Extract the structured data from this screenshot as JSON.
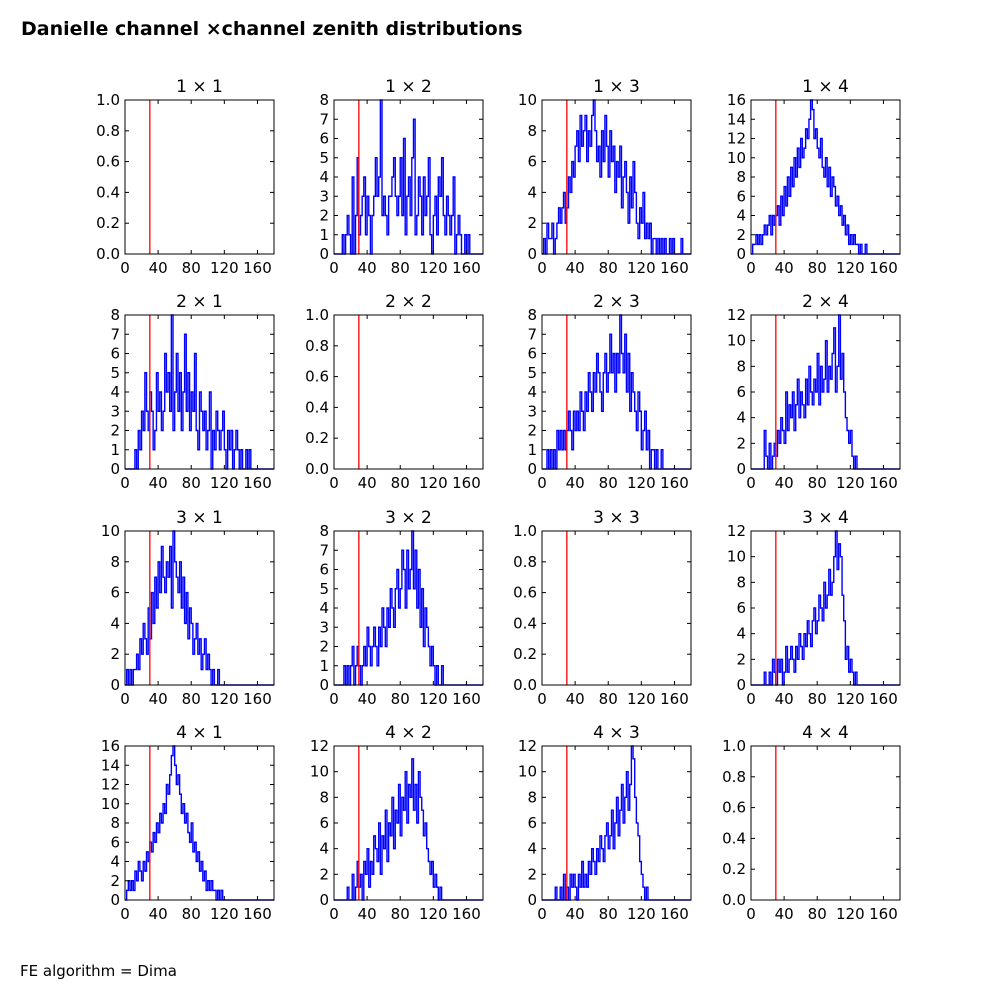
{
  "figure": {
    "title": "Danielle channel ×channel zenith distributions",
    "footer": "FE algorithm = Dima"
  },
  "colors": {
    "histogram": "#0000ff",
    "cut_line": "#ff0000",
    "axes": "#000000"
  },
  "chart_data": [
    {
      "type": "line",
      "title": "1 × 1",
      "empty": true,
      "cut_line_x": 30,
      "xlim": [
        0,
        180
      ],
      "ylim": [
        0,
        1.0
      ],
      "x_ticks": [
        "0",
        "40",
        "80",
        "120",
        "160"
      ],
      "y_ticks": [
        "0.0",
        "0.2",
        "0.4",
        "0.6",
        "0.8",
        "1.0"
      ],
      "bin_width": 2,
      "values": []
    },
    {
      "type": "line",
      "title": "1 × 2",
      "empty": false,
      "cut_line_x": 30,
      "xlim": [
        0,
        180
      ],
      "ylim": [
        0,
        8
      ],
      "x_ticks": [
        "0",
        "40",
        "80",
        "120",
        "160"
      ],
      "y_ticks": [
        "0",
        "1",
        "2",
        "3",
        "4",
        "5",
        "6",
        "7",
        "8"
      ],
      "bin_width": 2,
      "values": [
        0,
        0,
        0,
        0,
        0,
        1,
        0,
        1,
        2,
        1,
        0,
        4,
        0,
        2,
        5,
        1,
        2,
        3,
        4,
        1,
        3,
        2,
        0,
        2,
        3,
        5,
        3,
        4,
        8,
        2,
        3,
        2,
        1,
        3,
        3,
        4,
        5,
        3,
        2,
        3,
        5,
        2,
        6,
        1,
        3,
        4,
        2,
        5,
        7,
        1,
        2,
        4,
        3,
        1,
        4,
        2,
        3,
        5,
        1,
        0,
        2,
        3,
        1,
        4,
        3,
        5,
        2,
        1,
        3,
        2,
        1,
        2,
        4,
        0,
        1,
        2,
        1,
        0,
        0,
        1,
        0,
        1,
        0,
        0,
        0,
        0,
        0,
        0,
        0,
        0
      ]
    },
    {
      "type": "line",
      "title": "1 × 3",
      "empty": false,
      "cut_line_x": 30,
      "xlim": [
        0,
        180
      ],
      "ylim": [
        0,
        10
      ],
      "x_ticks": [
        "0",
        "40",
        "80",
        "120",
        "160"
      ],
      "y_ticks": [
        "0",
        "2",
        "4",
        "6",
        "8",
        "10"
      ],
      "bin_width": 2,
      "values": [
        0,
        1,
        0,
        2,
        1,
        1,
        2,
        0,
        1,
        2,
        3,
        2,
        3,
        4,
        2,
        3,
        5,
        4,
        6,
        5,
        7,
        8,
        6,
        9,
        7,
        8,
        9,
        6,
        8,
        7,
        9,
        10,
        8,
        6,
        7,
        5,
        8,
        6,
        9,
        7,
        5,
        8,
        6,
        7,
        4,
        6,
        5,
        7,
        3,
        5,
        6,
        4,
        2,
        5,
        3,
        6,
        4,
        2,
        1,
        3,
        2,
        4,
        1,
        2,
        1,
        2,
        0,
        1,
        1,
        0,
        1,
        0,
        1,
        0,
        1,
        0,
        0,
        1,
        0,
        1,
        0,
        0,
        0,
        0,
        1,
        0,
        0,
        0,
        0,
        0
      ]
    },
    {
      "type": "line",
      "title": "1 × 4",
      "empty": false,
      "cut_line_x": 30,
      "xlim": [
        0,
        180
      ],
      "ylim": [
        0,
        16
      ],
      "x_ticks": [
        "0",
        "40",
        "80",
        "120",
        "160"
      ],
      "y_ticks": [
        "0",
        "2",
        "4",
        "6",
        "8",
        "10",
        "12",
        "14",
        "16"
      ],
      "bin_width": 2,
      "values": [
        0,
        1,
        1,
        2,
        1,
        2,
        1,
        2,
        3,
        2,
        3,
        4,
        2,
        4,
        3,
        4,
        5,
        3,
        6,
        4,
        7,
        5,
        8,
        6,
        9,
        7,
        10,
        8,
        11,
        9,
        12,
        10,
        11,
        13,
        12,
        14,
        16,
        15,
        12,
        13,
        11,
        10,
        12,
        9,
        8,
        10,
        7,
        9,
        6,
        8,
        7,
        5,
        6,
        4,
        5,
        3,
        4,
        2,
        3,
        1,
        2,
        1,
        2,
        1,
        1,
        0,
        1,
        0,
        0,
        1,
        0,
        0,
        0,
        0,
        0,
        0,
        0,
        0,
        0,
        0,
        0,
        0,
        0,
        0,
        0,
        0,
        0,
        0,
        0,
        0
      ]
    },
    {
      "type": "line",
      "title": "2 × 1",
      "empty": false,
      "cut_line_x": 30,
      "xlim": [
        0,
        180
      ],
      "ylim": [
        0,
        8
      ],
      "x_ticks": [
        "0",
        "40",
        "80",
        "120",
        "160"
      ],
      "y_ticks": [
        "0",
        "1",
        "2",
        "3",
        "4",
        "5",
        "6",
        "7",
        "8"
      ],
      "bin_width": 2,
      "values": [
        0,
        0,
        0,
        0,
        0,
        0,
        1,
        0,
        2,
        1,
        3,
        2,
        5,
        3,
        2,
        4,
        3,
        1,
        2,
        5,
        3,
        4,
        2,
        3,
        6,
        4,
        5,
        3,
        8,
        2,
        4,
        6,
        3,
        5,
        2,
        4,
        7,
        3,
        5,
        2,
        4,
        3,
        6,
        2,
        1,
        4,
        3,
        2,
        3,
        1,
        2,
        4,
        0,
        2,
        1,
        3,
        2,
        1,
        2,
        3,
        1,
        0,
        2,
        1,
        2,
        0,
        1,
        2,
        1,
        0,
        1,
        0,
        0,
        1,
        0,
        1,
        0,
        0,
        0,
        0,
        0,
        0,
        0,
        0,
        0,
        0,
        0,
        0,
        0,
        0
      ]
    },
    {
      "type": "line",
      "title": "2 × 2",
      "empty": true,
      "cut_line_x": 30,
      "xlim": [
        0,
        180
      ],
      "ylim": [
        0,
        1.0
      ],
      "x_ticks": [
        "0",
        "40",
        "80",
        "120",
        "160"
      ],
      "y_ticks": [
        "0.0",
        "0.2",
        "0.4",
        "0.6",
        "0.8",
        "1.0"
      ],
      "bin_width": 2,
      "values": []
    },
    {
      "type": "line",
      "title": "2 × 3",
      "empty": false,
      "cut_line_x": 30,
      "xlim": [
        0,
        180
      ],
      "ylim": [
        0,
        8
      ],
      "x_ticks": [
        "0",
        "40",
        "80",
        "120",
        "160"
      ],
      "y_ticks": [
        "0",
        "1",
        "2",
        "3",
        "4",
        "5",
        "6",
        "7",
        "8"
      ],
      "bin_width": 2,
      "values": [
        0,
        0,
        0,
        1,
        0,
        1,
        0,
        1,
        0,
        2,
        1,
        2,
        1,
        2,
        1,
        2,
        3,
        2,
        1,
        3,
        2,
        3,
        2,
        4,
        3,
        2,
        4,
        3,
        5,
        4,
        3,
        5,
        4,
        6,
        5,
        4,
        3,
        5,
        6,
        4,
        5,
        7,
        5,
        6,
        4,
        6,
        5,
        8,
        6,
        5,
        7,
        4,
        6,
        3,
        5,
        4,
        3,
        2,
        4,
        3,
        1,
        2,
        3,
        1,
        2,
        0,
        1,
        1,
        0,
        1,
        0,
        0,
        1,
        0,
        0,
        0,
        0,
        0,
        0,
        0,
        0,
        0,
        0,
        0,
        0,
        0,
        0,
        0,
        0,
        0
      ]
    },
    {
      "type": "line",
      "title": "2 × 4",
      "empty": false,
      "cut_line_x": 30,
      "xlim": [
        0,
        180
      ],
      "ylim": [
        0,
        12
      ],
      "x_ticks": [
        "0",
        "40",
        "80",
        "120",
        "160"
      ],
      "y_ticks": [
        "0",
        "2",
        "4",
        "6",
        "8",
        "10",
        "12"
      ],
      "bin_width": 2,
      "values": [
        0,
        0,
        0,
        0,
        0,
        0,
        0,
        0,
        3,
        1,
        0,
        2,
        0,
        1,
        2,
        1,
        3,
        2,
        4,
        3,
        2,
        6,
        3,
        5,
        4,
        6,
        3,
        5,
        7,
        4,
        6,
        5,
        4,
        7,
        5,
        8,
        6,
        5,
        7,
        6,
        9,
        5,
        8,
        6,
        7,
        10,
        6,
        8,
        7,
        9,
        11,
        6,
        8,
        12,
        7,
        9,
        6,
        4,
        3,
        2,
        3,
        1,
        0,
        1,
        0,
        0,
        0,
        0,
        0,
        0,
        0,
        0,
        0,
        0,
        0,
        0,
        0,
        0,
        0,
        0,
        0,
        0,
        0,
        0,
        0,
        0,
        0,
        0,
        0,
        0
      ]
    },
    {
      "type": "line",
      "title": "3 × 1",
      "empty": false,
      "cut_line_x": 30,
      "xlim": [
        0,
        180
      ],
      "ylim": [
        0,
        10
      ],
      "x_ticks": [
        "0",
        "40",
        "80",
        "120",
        "160"
      ],
      "y_ticks": [
        "0",
        "2",
        "4",
        "6",
        "8",
        "10"
      ],
      "bin_width": 2,
      "values": [
        0,
        1,
        0,
        1,
        0,
        1,
        1,
        2,
        1,
        3,
        2,
        4,
        3,
        2,
        5,
        3,
        6,
        4,
        7,
        5,
        8,
        6,
        9,
        7,
        6,
        8,
        7,
        9,
        5,
        10,
        8,
        7,
        6,
        8,
        5,
        7,
        4,
        6,
        3,
        5,
        4,
        2,
        3,
        4,
        2,
        3,
        1,
        2,
        3,
        1,
        2,
        1,
        0,
        1,
        0,
        0,
        1,
        0,
        0,
        0,
        0,
        0,
        0,
        0,
        0,
        0,
        0,
        0,
        0,
        0,
        0,
        0,
        0,
        0,
        0,
        0,
        0,
        0,
        0,
        0,
        0,
        0,
        0,
        0,
        0,
        0,
        0,
        0,
        0,
        0
      ]
    },
    {
      "type": "line",
      "title": "3 × 2",
      "empty": false,
      "cut_line_x": 30,
      "xlim": [
        0,
        180
      ],
      "ylim": [
        0,
        8
      ],
      "x_ticks": [
        "0",
        "40",
        "80",
        "120",
        "160"
      ],
      "y_ticks": [
        "0",
        "1",
        "2",
        "3",
        "4",
        "5",
        "6",
        "7",
        "8"
      ],
      "bin_width": 2,
      "values": [
        0,
        0,
        0,
        0,
        0,
        0,
        1,
        0,
        1,
        0,
        1,
        2,
        0,
        1,
        2,
        1,
        0,
        1,
        2,
        1,
        3,
        2,
        1,
        2,
        3,
        2,
        1,
        3,
        2,
        4,
        3,
        2,
        4,
        3,
        5,
        4,
        3,
        5,
        6,
        4,
        5,
        7,
        6,
        4,
        7,
        5,
        6,
        8,
        5,
        7,
        4,
        6,
        3,
        5,
        2,
        4,
        3,
        2,
        1,
        2,
        1,
        0,
        1,
        0,
        0,
        1,
        0,
        0,
        0,
        0,
        0,
        0,
        0,
        0,
        0,
        0,
        0,
        0,
        0,
        0,
        0,
        0,
        0,
        0,
        0,
        0,
        0,
        0,
        0,
        0
      ]
    },
    {
      "type": "line",
      "title": "3 × 3",
      "empty": true,
      "cut_line_x": 30,
      "xlim": [
        0,
        180
      ],
      "ylim": [
        0,
        1.0
      ],
      "x_ticks": [
        "0",
        "40",
        "80",
        "120",
        "160"
      ],
      "y_ticks": [
        "0.0",
        "0.2",
        "0.4",
        "0.6",
        "0.8",
        "1.0"
      ],
      "bin_width": 2,
      "values": []
    },
    {
      "type": "line",
      "title": "3 × 4",
      "empty": false,
      "cut_line_x": 30,
      "xlim": [
        0,
        180
      ],
      "ylim": [
        0,
        12
      ],
      "x_ticks": [
        "0",
        "40",
        "80",
        "120",
        "160"
      ],
      "y_ticks": [
        "0",
        "2",
        "4",
        "6",
        "8",
        "10",
        "12"
      ],
      "bin_width": 2,
      "values": [
        0,
        0,
        0,
        0,
        0,
        0,
        0,
        0,
        1,
        0,
        0,
        1,
        0,
        2,
        1,
        0,
        2,
        1,
        2,
        0,
        1,
        3,
        1,
        2,
        3,
        2,
        1,
        3,
        2,
        4,
        3,
        2,
        4,
        3,
        5,
        4,
        3,
        5,
        6,
        4,
        5,
        7,
        6,
        5,
        8,
        6,
        7,
        9,
        7,
        8,
        10,
        12,
        9,
        11,
        10,
        7,
        5,
        2,
        3,
        1,
        2,
        1,
        0,
        1,
        0,
        0,
        0,
        0,
        0,
        0,
        0,
        0,
        0,
        0,
        0,
        0,
        0,
        0,
        0,
        0,
        0,
        0,
        0,
        0,
        0,
        0,
        0,
        0,
        0,
        0
      ]
    },
    {
      "type": "line",
      "title": "4 × 1",
      "empty": false,
      "cut_line_x": 30,
      "xlim": [
        0,
        180
      ],
      "ylim": [
        0,
        16
      ],
      "x_ticks": [
        "0",
        "40",
        "80",
        "120",
        "160"
      ],
      "y_ticks": [
        "0",
        "2",
        "4",
        "6",
        "8",
        "10",
        "12",
        "14",
        "16"
      ],
      "bin_width": 2,
      "values": [
        0,
        1,
        2,
        1,
        2,
        1,
        3,
        2,
        4,
        3,
        2,
        4,
        3,
        5,
        4,
        6,
        5,
        7,
        6,
        8,
        7,
        9,
        8,
        10,
        9,
        12,
        11,
        13,
        15,
        16,
        14,
        12,
        13,
        11,
        9,
        10,
        8,
        9,
        7,
        6,
        8,
        5,
        6,
        4,
        5,
        3,
        4,
        2,
        3,
        1,
        2,
        1,
        2,
        1,
        1,
        0,
        1,
        0,
        1,
        0,
        0,
        0,
        0,
        0,
        0,
        0,
        0,
        0,
        0,
        0,
        0,
        0,
        0,
        0,
        0,
        0,
        0,
        0,
        0,
        0,
        0,
        0,
        0,
        0,
        0,
        0,
        0,
        0,
        0,
        0
      ]
    },
    {
      "type": "line",
      "title": "4 × 2",
      "empty": false,
      "cut_line_x": 30,
      "xlim": [
        0,
        180
      ],
      "ylim": [
        0,
        12
      ],
      "x_ticks": [
        "0",
        "40",
        "80",
        "120",
        "160"
      ],
      "y_ticks": [
        "0",
        "2",
        "4",
        "6",
        "8",
        "10",
        "12"
      ],
      "bin_width": 2,
      "values": [
        0,
        0,
        0,
        0,
        0,
        0,
        0,
        0,
        1,
        0,
        0,
        2,
        0,
        1,
        3,
        1,
        2,
        0,
        3,
        2,
        4,
        1,
        3,
        2,
        5,
        4,
        3,
        6,
        2,
        5,
        4,
        7,
        3,
        6,
        5,
        8,
        4,
        7,
        6,
        9,
        5,
        8,
        7,
        10,
        6,
        9,
        8,
        11,
        7,
        9,
        6,
        10,
        8,
        7,
        5,
        6,
        4,
        3,
        2,
        3,
        1,
        2,
        1,
        0,
        1,
        0,
        0,
        0,
        0,
        0,
        0,
        0,
        0,
        0,
        0,
        0,
        0,
        0,
        0,
        0,
        0,
        0,
        0,
        0,
        0,
        0,
        0,
        0,
        0,
        0
      ]
    },
    {
      "type": "line",
      "title": "4 × 3",
      "empty": false,
      "cut_line_x": 30,
      "xlim": [
        0,
        180
      ],
      "ylim": [
        0,
        12
      ],
      "x_ticks": [
        "0",
        "40",
        "80",
        "120",
        "160"
      ],
      "y_ticks": [
        "0",
        "2",
        "4",
        "6",
        "8",
        "10",
        "12"
      ],
      "bin_width": 2,
      "values": [
        0,
        0,
        0,
        0,
        0,
        0,
        0,
        0,
        1,
        0,
        0,
        1,
        0,
        2,
        0,
        1,
        0,
        2,
        1,
        2,
        1,
        0,
        2,
        1,
        3,
        1,
        2,
        1,
        3,
        2,
        4,
        3,
        2,
        4,
        3,
        5,
        4,
        3,
        5,
        6,
        4,
        5,
        7,
        4,
        6,
        8,
        5,
        7,
        9,
        6,
        8,
        10,
        7,
        9,
        12,
        11,
        8,
        6,
        5,
        3,
        2,
        1,
        0,
        1,
        0,
        0,
        0,
        0,
        0,
        0,
        0,
        0,
        0,
        0,
        0,
        0,
        0,
        0,
        0,
        0,
        0,
        0,
        0,
        0,
        0,
        0,
        0,
        0,
        0,
        0
      ]
    },
    {
      "type": "line",
      "title": "4 × 4",
      "empty": true,
      "cut_line_x": 30,
      "xlim": [
        0,
        180
      ],
      "ylim": [
        0,
        1.0
      ],
      "x_ticks": [
        "0",
        "40",
        "80",
        "120",
        "160"
      ],
      "y_ticks": [
        "0.0",
        "0.2",
        "0.4",
        "0.6",
        "0.8",
        "1.0"
      ],
      "bin_width": 2,
      "values": []
    }
  ]
}
